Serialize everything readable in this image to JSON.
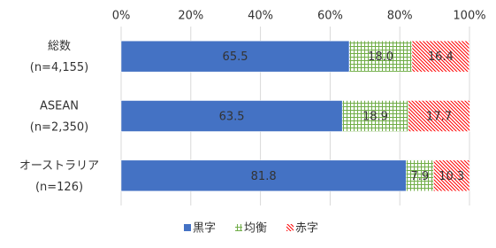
{
  "chart_data": {
    "type": "stacked-barh",
    "categories": [
      [
        "総数",
        "(n=4,155)"
      ],
      [
        "ASEAN",
        "(n=2,350)"
      ],
      [
        "オーストラリア",
        "(n=126)"
      ]
    ],
    "series": [
      {
        "name": "黒字",
        "color": "#4472c4",
        "pattern": "solid",
        "values": [
          65.5,
          63.5,
          81.8
        ],
        "value_labels": [
          "65.5",
          "63.5",
          "81.8"
        ]
      },
      {
        "name": "均衡",
        "color": "#70ad47",
        "pattern": "grid",
        "values": [
          18.0,
          18.9,
          7.9
        ],
        "value_labels": [
          "18.0",
          "18.9",
          "7.9"
        ]
      },
      {
        "name": "赤字",
        "color": "#ff0000",
        "pattern": "diagonal",
        "values": [
          16.4,
          17.7,
          10.3
        ],
        "value_labels": [
          "16.4",
          "17.7",
          "10.3"
        ]
      }
    ],
    "xlim": [
      0,
      100
    ],
    "xticks": [
      {
        "value": 0,
        "label": "0%"
      },
      {
        "value": 20,
        "label": "20%"
      },
      {
        "value": 40,
        "label": "40%"
      },
      {
        "value": 60,
        "label": "60%"
      },
      {
        "value": 80,
        "label": "80%"
      },
      {
        "value": 100,
        "label": "100%"
      }
    ],
    "grid": true,
    "legend": "bottom"
  }
}
